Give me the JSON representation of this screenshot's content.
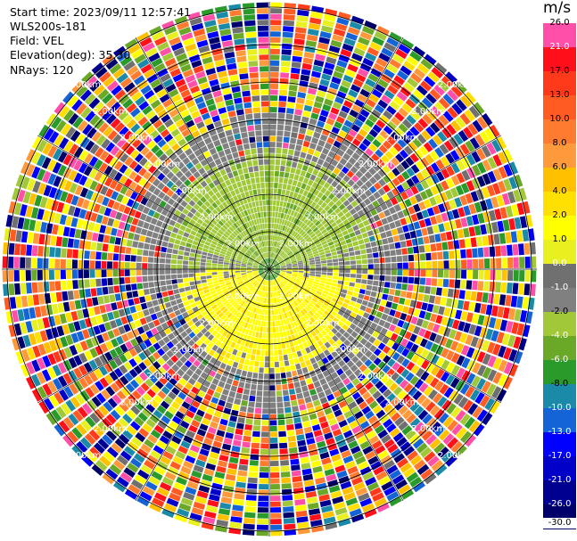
{
  "header": {
    "start_time": "Start time: 2023/09/11 12:57:41",
    "instrument": "WLS200s-181",
    "field": "Field: VEL",
    "elevation": "Elevation(deg): 35.30",
    "nrays": "NRays: 120"
  },
  "chart_data": {
    "type": "heatmap",
    "projection": "polar PPI",
    "field": "VEL",
    "units": "m/s",
    "n_rays": 120,
    "range_ring_label": "2.00km",
    "range_ring_count": 7,
    "colorbar": {
      "unit": "m/s",
      "ticks": [
        "26.0",
        "21.0",
        "17.0",
        "13.0",
        "10.0",
        "8.0",
        "6.0",
        "4.0",
        "2.0",
        "1.0",
        "0.0",
        "-1.0",
        "-2.0",
        "-4.0",
        "-6.0",
        "-8.0",
        "-10.0",
        "-13.0",
        "-17.0",
        "-21.0",
        "-26.0",
        "-30.0"
      ],
      "colors": [
        "#ff4fa8",
        "#ff0f1a",
        "#ff3a1a",
        "#ff5b22",
        "#ff7b30",
        "#ff9a3c",
        "#ffc000",
        "#ffe000",
        "#ffff00",
        "#e8f020",
        "#707070",
        "#808080",
        "#a0c838",
        "#6aa828",
        "#2a9a2a",
        "#1a8aa8",
        "#1464d8",
        "#0000ff",
        "#0000c8",
        "#000090",
        "#00006a"
      ]
    },
    "pattern": {
      "north_half_near": "light green, -1 to -4 m/s (flow away-side negative)",
      "south_half_near": "yellow, +2 to +4 m/s",
      "far_range": "noise (random colors)"
    }
  }
}
